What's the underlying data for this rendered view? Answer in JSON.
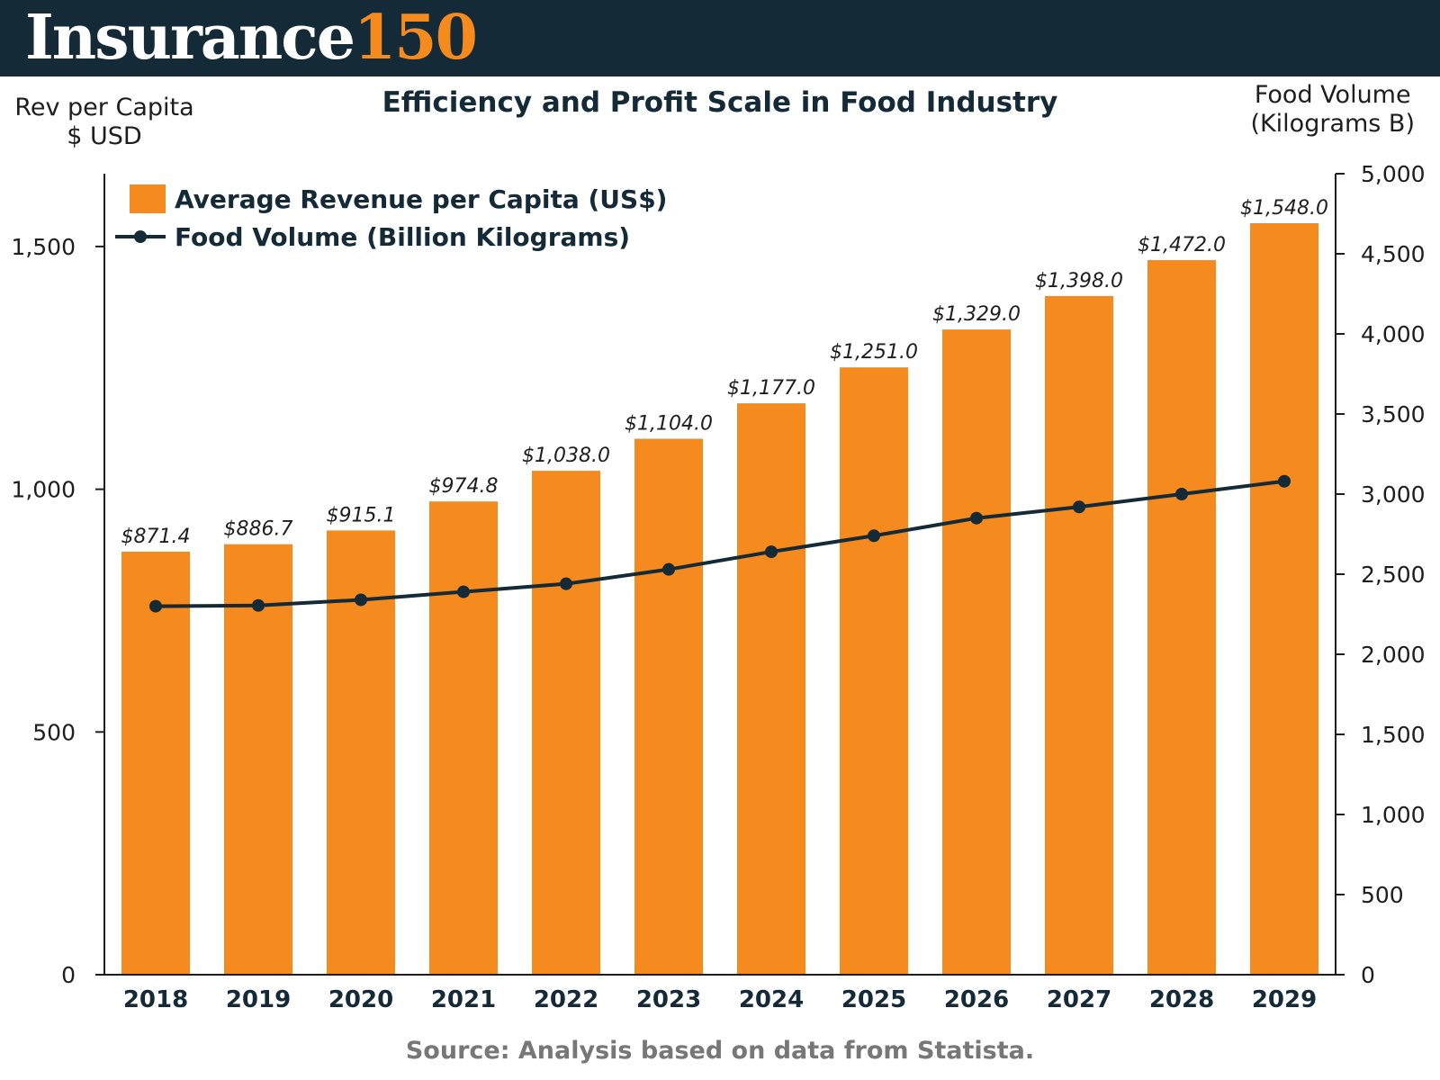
{
  "header": {
    "brand_word": "Insurance",
    "brand_number": "150"
  },
  "colors": {
    "header_bg": "#142a36",
    "brand_accent": "#f58a1f",
    "bar": "#f58a1f",
    "line": "#142a36",
    "source_text": "#777777"
  },
  "chart_data": {
    "type": "bar",
    "title": "Efficiency and Profit Scale in Food Industry",
    "categories": [
      "2018",
      "2019",
      "2020",
      "2021",
      "2022",
      "2023",
      "2024",
      "2025",
      "2026",
      "2027",
      "2028",
      "2029"
    ],
    "left_axis": {
      "title_lines": [
        "Rev per Capita",
        "$ USD"
      ],
      "range": [
        0,
        1650
      ],
      "ticks": [
        0,
        500,
        1000,
        1500
      ],
      "tick_labels": [
        "0",
        "500",
        "1,000",
        "1,500"
      ]
    },
    "right_axis": {
      "title_lines": [
        "Food Volume",
        "(Kilograms B)"
      ],
      "range": [
        0,
        5000
      ],
      "ticks": [
        0,
        500,
        1000,
        1500,
        2000,
        2500,
        3000,
        3500,
        4000,
        4500,
        5000
      ],
      "tick_labels": [
        "0",
        "500",
        "1,000",
        "1,500",
        "2,000",
        "2,500",
        "3,000",
        "3,500",
        "4,000",
        "4,500",
        "5,000"
      ]
    },
    "series": [
      {
        "name": "Average Revenue per Capita (US$)",
        "type": "bar",
        "axis": "left",
        "values": [
          871.4,
          886.7,
          915.1,
          974.8,
          1038.0,
          1104.0,
          1177.0,
          1251.0,
          1329.0,
          1398.0,
          1472.0,
          1548.0
        ],
        "labels": [
          "$871.4",
          "$886.7",
          "$915.1",
          "$974.8",
          "$1,038.0",
          "$1,104.0",
          "$1,177.0",
          "$1,251.0",
          "$1,329.0",
          "$1,398.0",
          "$1,472.0",
          "$1,548.0"
        ]
      },
      {
        "name": "Food Volume (Billion Kilograms)",
        "type": "line",
        "axis": "right",
        "values": [
          2300,
          2305,
          2340,
          2390,
          2440,
          2530,
          2640,
          2740,
          2850,
          2920,
          3000,
          3080
        ]
      }
    ],
    "legend_position": "top-left",
    "grid": false
  },
  "footer": {
    "source": "Source: Analysis based on data from  Statista."
  }
}
